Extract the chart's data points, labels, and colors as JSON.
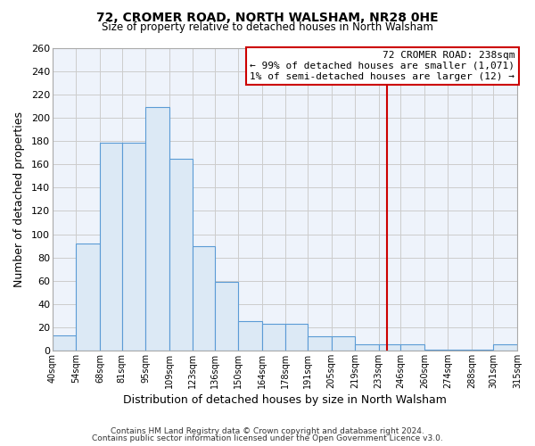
{
  "title": "72, CROMER ROAD, NORTH WALSHAM, NR28 0HE",
  "subtitle": "Size of property relative to detached houses in North Walsham",
  "xlabel": "Distribution of detached houses by size in North Walsham",
  "ylabel": "Number of detached properties",
  "bar_edges": [
    40,
    54,
    68,
    81,
    95,
    109,
    123,
    136,
    150,
    164,
    178,
    191,
    205,
    219,
    233,
    246,
    260,
    274,
    288,
    301,
    315
  ],
  "bar_heights": [
    13,
    92,
    179,
    179,
    209,
    165,
    90,
    59,
    25,
    23,
    23,
    12,
    12,
    5,
    5,
    5,
    1,
    1,
    1,
    5
  ],
  "bar_color": "#dce9f5",
  "bar_edge_color": "#5b9bd5",
  "property_value": 238,
  "red_line_color": "#cc0000",
  "annotation_line1": "72 CROMER ROAD: 238sqm",
  "annotation_line2": "← 99% of detached houses are smaller (1,071)",
  "annotation_line3": "1% of semi-detached houses are larger (12) →",
  "annotation_box_edge_color": "#cc0000",
  "ylim": [
    0,
    260
  ],
  "yticks": [
    0,
    20,
    40,
    60,
    80,
    100,
    120,
    140,
    160,
    180,
    200,
    220,
    240,
    260
  ],
  "footer_line1": "Contains HM Land Registry data © Crown copyright and database right 2024.",
  "footer_line2": "Contains public sector information licensed under the Open Government Licence v3.0.",
  "tick_labels": [
    "40sqm",
    "54sqm",
    "68sqm",
    "81sqm",
    "95sqm",
    "109sqm",
    "123sqm",
    "136sqm",
    "150sqm",
    "164sqm",
    "178sqm",
    "191sqm",
    "205sqm",
    "219sqm",
    "233sqm",
    "246sqm",
    "260sqm",
    "274sqm",
    "288sqm",
    "301sqm",
    "315sqm"
  ],
  "background_color": "#ffffff",
  "axes_bg_color": "#eef3fb",
  "grid_color": "#cccccc"
}
